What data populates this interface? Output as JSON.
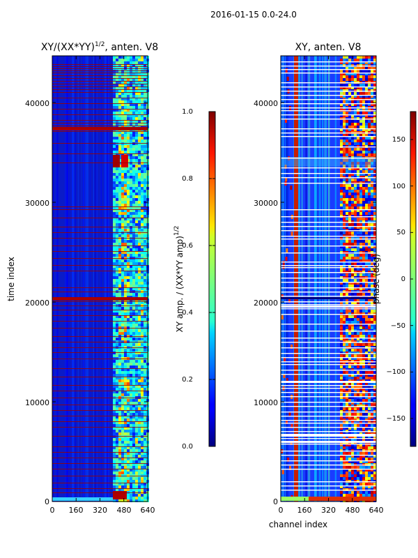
{
  "suptitle": "2016-01-15 0.0-24.0",
  "chart_data": [
    {
      "type": "heatmap",
      "title": "XY/(XX*YY)^1/2, anten. V8",
      "title_main": "XY/(XX*YY)",
      "title_exp": "1/2",
      "title_rest": ", anten. V8",
      "xlabel": "",
      "ylabel": "time index",
      "xlim": [
        0,
        640
      ],
      "ylim": [
        0,
        45000
      ],
      "xticks": [
        "0",
        "160",
        "320",
        "480",
        "640"
      ],
      "yticks": [
        "0",
        "10000",
        "20000",
        "30000",
        "40000"
      ],
      "colormap": "jet",
      "colorbar": {
        "label": "XY amp. / (XX*YY amp)^1/2",
        "label_main": "XY amp. / (XX*YY amp)",
        "label_exp": "1/2",
        "range": [
          0.0,
          1.0
        ],
        "ticks": [
          "0.0",
          "0.2",
          "0.4",
          "0.6",
          "0.8",
          "1.0"
        ]
      }
    },
    {
      "type": "heatmap",
      "title": "XY, anten. V8",
      "xlabel": "channel index",
      "ylabel": "",
      "xlim": [
        0,
        640
      ],
      "ylim": [
        0,
        45000
      ],
      "xticks": [
        "0",
        "160",
        "320",
        "480",
        "640"
      ],
      "yticks": [
        "0",
        "10000",
        "20000",
        "30000",
        "40000"
      ],
      "colormap": "jet",
      "colorbar": {
        "label": "phase (deg)",
        "range": [
          -180,
          180
        ],
        "ticks": [
          "150",
          "100",
          "50",
          "0",
          "−50",
          "−100",
          "−150"
        ]
      }
    }
  ]
}
